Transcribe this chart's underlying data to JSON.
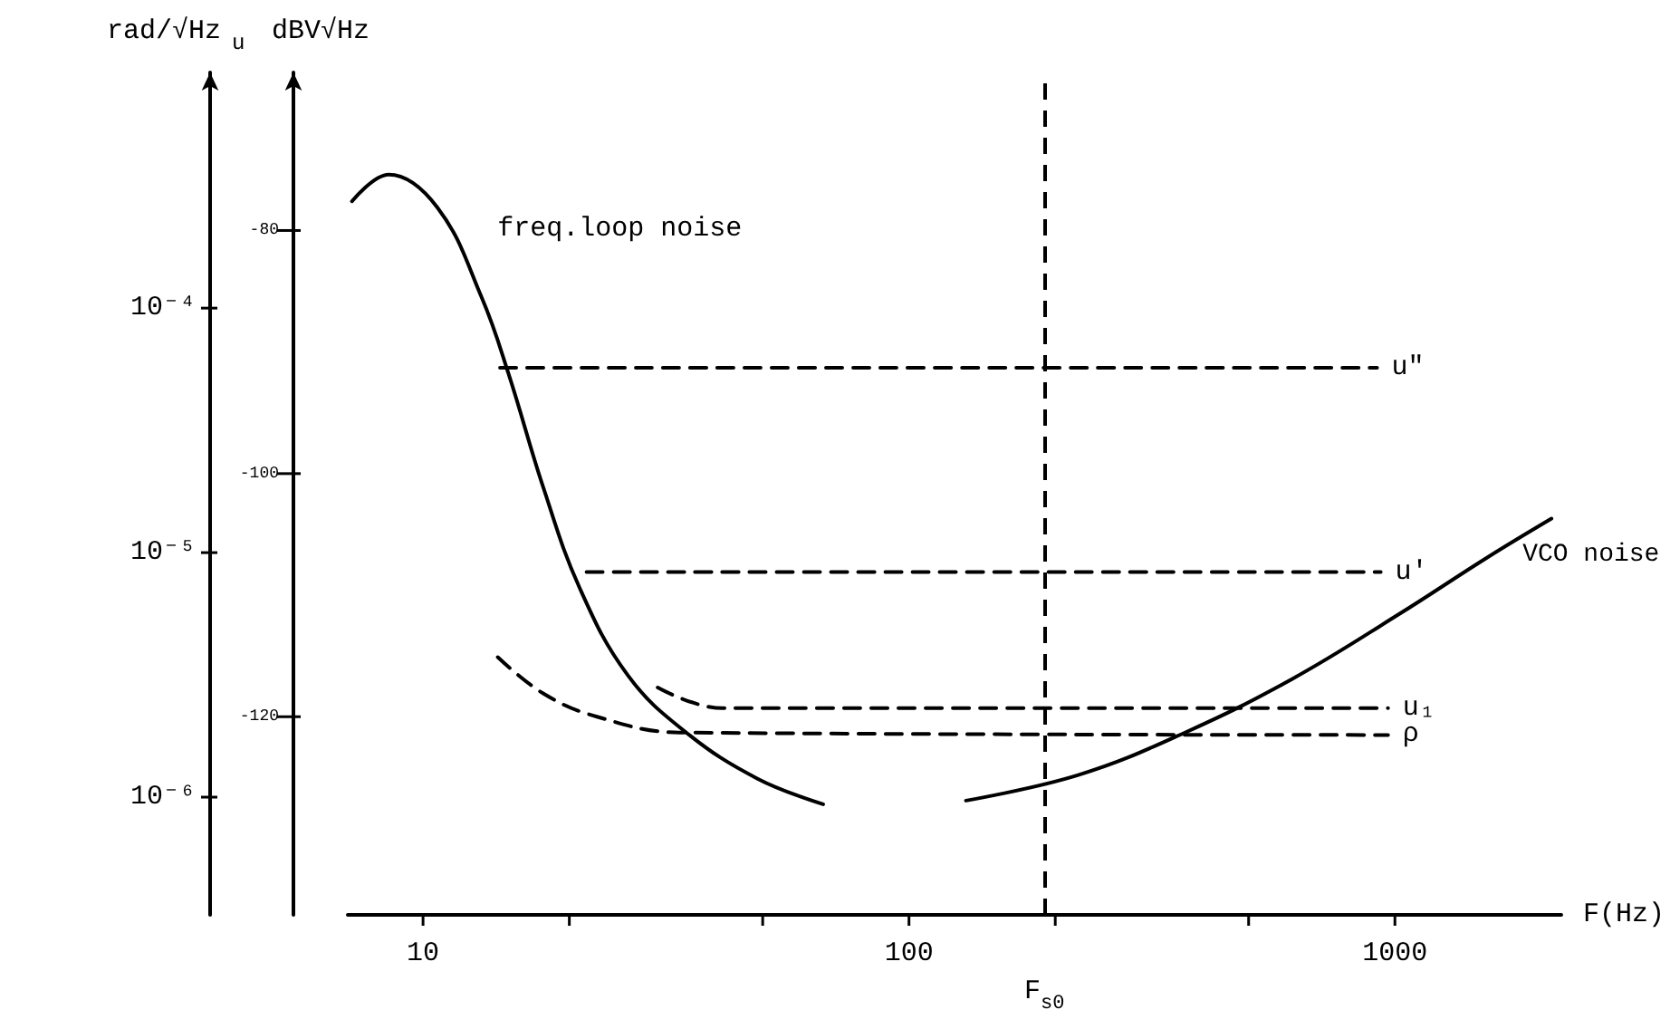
{
  "chart_data": {
    "type": "line",
    "xlabel": "F(Hz)",
    "ylabel": "rad/√Hz",
    "y2label": "dBV√Hz",
    "annotations": [
      "u"
    ],
    "log": "xy",
    "grid": false,
    "legend": false,
    "marker": "none",
    "xlim": [
      7,
      2200
    ],
    "xticks": [
      10,
      {
        "value": 20,
        "label": null
      },
      {
        "value": 50,
        "label": null
      },
      100,
      {
        "value": 200,
        "label": null
      },
      {
        "value": 500,
        "label": null
      },
      1000
    ],
    "y2lim": [
      -136.3,
      -67
    ],
    "y2ticks": [
      -120,
      -100,
      -80
    ],
    "ylim": [
      3.3e-07,
      0.00092
    ],
    "yticks": [
      {
        "value": 1e-06,
        "label": "10⁻⁶"
      },
      {
        "value": 1e-05,
        "label": "10⁻⁵"
      },
      {
        "value": 0.0001,
        "label": "10⁻⁴"
      }
    ],
    "ref_lines": [
      {
        "axis": "x",
        "value": 190,
        "label": "F$_{s0}$",
        "color": "#000000",
        "line_style": "dashed"
      }
    ],
    "series": [
      {
        "name": "freq.loop noise",
        "axis": "y2",
        "color": "#000000",
        "line_style": "solid",
        "x": [
          7.14,
          8.5,
          10.7,
          13.2,
          15,
          17.7,
          21,
          26.4,
          34.8,
          48.8,
          66.6
        ],
        "values": [
          -77.6,
          -75.4,
          -78.1,
          -85.5,
          -91.8,
          -101.2,
          -109.4,
          -116.6,
          -121.3,
          -125.1,
          -127.2
        ]
      },
      {
        "name": "VCO noise",
        "axis": "y2",
        "color": "#000000",
        "line_style": "solid",
        "x": [
          131,
          223,
          370,
          614,
          1016,
          1549,
          2100
        ],
        "values": [
          -126.9,
          -124.8,
          -121.3,
          -116.9,
          -111.6,
          -106.9,
          -103.7
        ]
      },
      {
        "name": "u\"",
        "axis": "y2",
        "color": "#000000",
        "line_style": "dashed",
        "x": [
          14.4,
          919
        ],
        "values": [
          -91.3,
          -91.3
        ]
      },
      {
        "name": "u'",
        "axis": "y2",
        "color": "#000000",
        "line_style": "dashed",
        "x": [
          21.7,
          935
        ],
        "values": [
          -108.1,
          -108.1
        ]
      },
      {
        "name": "u₁",
        "axis": "y2",
        "color": "#000000",
        "line_style": "dashed",
        "x": [
          30.4,
          41.3,
          968
        ],
        "values": [
          -117.6,
          -119.3,
          -119.3
        ]
      },
      {
        "name": "ρ",
        "axis": "y2",
        "color": "#000000",
        "line_style": "dashed",
        "x": [
          14.25,
          17.7,
          22.8,
          33.7,
          968
        ],
        "values": [
          -115.1,
          -118.1,
          -120,
          -121.3,
          -121.5
        ]
      }
    ]
  }
}
